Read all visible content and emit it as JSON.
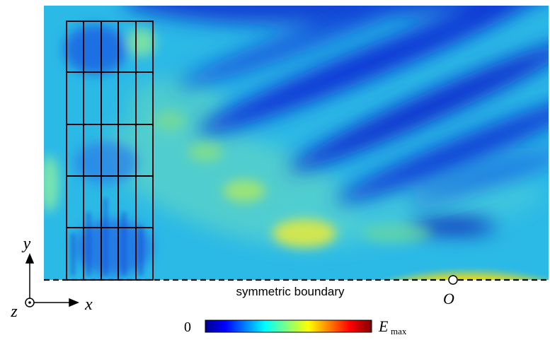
{
  "figure": {
    "boundary_label": "symmetric boundary",
    "origin_label": "O",
    "axes": {
      "x": "x",
      "y": "y",
      "z": "z"
    },
    "colorbar": {
      "min_label": "0",
      "max_label_main": "E",
      "max_label_sub": "max",
      "colormap": "jet"
    },
    "grid_overlay": {
      "columns": 5,
      "rows": 5
    }
  },
  "colors": {
    "field_background": "#26b8e8",
    "grid_lines": "#000000",
    "boundary_line": "#000000"
  }
}
